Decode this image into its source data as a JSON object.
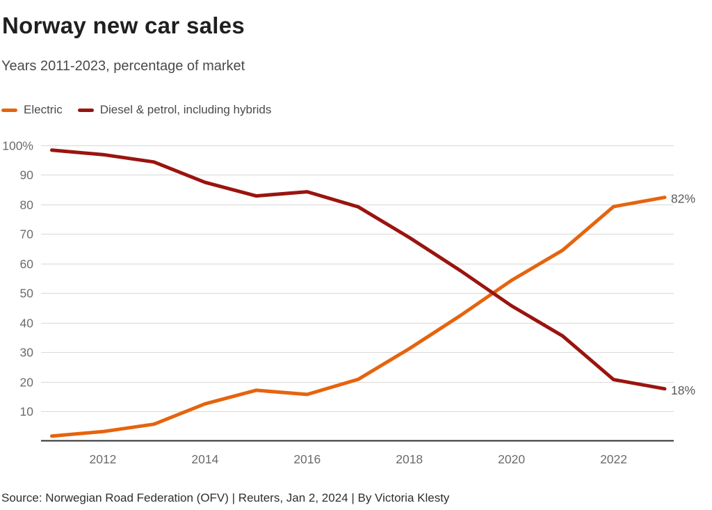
{
  "header": {
    "title": "Norway new car sales",
    "subtitle": "Years 2011-2023, percentage of market"
  },
  "legend": [
    {
      "label": "Electric",
      "color": "#e5640e"
    },
    {
      "label": "Diesel & petrol, including hybrids",
      "color": "#9a140f"
    }
  ],
  "chart_data": {
    "type": "line",
    "title": "Norway new car sales",
    "subtitle": "Years 2011-2023, percentage of market",
    "x": [
      2011,
      2012,
      2013,
      2014,
      2015,
      2016,
      2017,
      2018,
      2019,
      2020,
      2021,
      2022,
      2023
    ],
    "series": [
      {
        "name": "Electric",
        "color": "#e5640e",
        "values": [
          1.6,
          3.1,
          5.6,
          12.5,
          17.1,
          15.7,
          20.8,
          31.2,
          42.4,
          54.3,
          64.5,
          79.3,
          82.4
        ],
        "end_label": "82%"
      },
      {
        "name": "Diesel & petrol, including hybrids",
        "color": "#9a140f",
        "values": [
          98.4,
          96.9,
          94.4,
          87.5,
          82.9,
          84.3,
          79.2,
          68.8,
          57.6,
          45.7,
          35.5,
          20.7,
          17.6
        ],
        "end_label": "18%"
      }
    ],
    "ylim": [
      0,
      100
    ],
    "yticks": [
      100,
      90,
      80,
      70,
      60,
      50,
      40,
      30,
      20,
      10
    ],
    "ytick_labels": [
      "100%",
      "90",
      "80",
      "70",
      "60",
      "50",
      "40",
      "30",
      "20",
      "10"
    ],
    "xticks": [
      2012,
      2014,
      2016,
      2018,
      2020,
      2022
    ],
    "grid": true,
    "legend_position": "top-left",
    "colors": {
      "grid": "#d8d8d8",
      "axis": "#2e2e2e",
      "tick_text": "#6b6b6b",
      "end_label_text": "#595959"
    }
  },
  "footer": {
    "source": "Source: Norwegian Road Federation (OFV) | Reuters, Jan 2, 2024 | By Victoria Klesty"
  }
}
